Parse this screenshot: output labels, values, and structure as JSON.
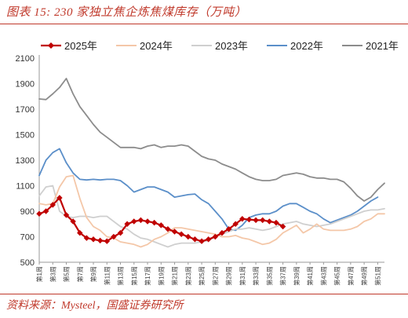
{
  "header": {
    "title": "图表 15: 230 家独立焦企炼焦煤库存（万吨）"
  },
  "footer": {
    "source": "资料来源：Mysteel，国盛证券研究所"
  },
  "chart_data": {
    "type": "line",
    "title": "图表 15: 230 家独立焦企炼焦煤库存（万吨）",
    "xlabel": "",
    "ylabel": "",
    "ylim": [
      500,
      2100
    ],
    "yticks": [
      500,
      700,
      900,
      1100,
      1300,
      1500,
      1700,
      1900,
      2100
    ],
    "xlim": [
      1,
      52
    ],
    "xticks": [
      "第1周",
      "第3周",
      "第5周",
      "第7周",
      "第9周",
      "第11周",
      "第13周",
      "第15周",
      "第17周",
      "第19周",
      "第21周",
      "第23周",
      "第25周",
      "第27周",
      "第29周",
      "第31周",
      "第33周",
      "第35周",
      "第37周",
      "第39周",
      "第41周",
      "第43周",
      "第45周",
      "第47周",
      "第49周",
      "第51周"
    ],
    "legend_position": "top",
    "grid": false,
    "series": [
      {
        "name": "2025年",
        "color": "#c00000",
        "marker": "diamond",
        "values": [
          880,
          900,
          950,
          1005,
          870,
          820,
          730,
          690,
          680,
          670,
          665,
          700,
          730,
          800,
          820,
          830,
          820,
          810,
          790,
          760,
          740,
          720,
          700,
          680,
          665,
          680,
          700,
          730,
          760,
          800,
          840,
          835,
          830,
          830,
          820,
          810,
          780
        ]
      },
      {
        "name": "2024年",
        "color": "#f4c7a8",
        "values": [
          960,
          950,
          960,
          1090,
          1170,
          1180,
          1000,
          850,
          780,
          750,
          700,
          690,
          660,
          650,
          640,
          620,
          640,
          680,
          700,
          730,
          770,
          770,
          760,
          750,
          740,
          730,
          720,
          700,
          700,
          710,
          690,
          680,
          660,
          640,
          650,
          680,
          730,
          760,
          790,
          730,
          760,
          800,
          760,
          750,
          750,
          750,
          760,
          780,
          820,
          840,
          880,
          880
        ]
      },
      {
        "name": "2023年",
        "color": "#cfcfcf",
        "values": [
          1020,
          1090,
          1100,
          900,
          860,
          850,
          860,
          860,
          850,
          860,
          860,
          820,
          780,
          760,
          720,
          690,
          680,
          660,
          640,
          620,
          640,
          650,
          650,
          650,
          660,
          670,
          700,
          720,
          740,
          760,
          760,
          770,
          760,
          750,
          760,
          780,
          800,
          810,
          820,
          800,
          790,
          780,
          790,
          800,
          820,
          840,
          860,
          880,
          900,
          910,
          910,
          920
        ]
      },
      {
        "name": "2022年",
        "color": "#5b8fc9",
        "values": [
          1180,
          1300,
          1360,
          1390,
          1280,
          1200,
          1150,
          1145,
          1150,
          1145,
          1150,
          1150,
          1140,
          1100,
          1050,
          1070,
          1090,
          1090,
          1070,
          1050,
          1010,
          1020,
          1030,
          1035,
          990,
          960,
          900,
          840,
          760,
          750,
          790,
          850,
          870,
          880,
          880,
          900,
          940,
          960,
          960,
          930,
          900,
          880,
          840,
          810,
          830,
          850,
          870,
          900,
          940,
          980,
          1010
        ]
      },
      {
        "name": "2021年",
        "color": "#8c8c8c",
        "values": [
          1780,
          1775,
          1820,
          1870,
          1940,
          1820,
          1720,
          1650,
          1580,
          1520,
          1480,
          1440,
          1400,
          1400,
          1400,
          1390,
          1410,
          1420,
          1400,
          1410,
          1410,
          1420,
          1410,
          1370,
          1330,
          1310,
          1300,
          1270,
          1250,
          1230,
          1200,
          1170,
          1150,
          1140,
          1140,
          1150,
          1180,
          1190,
          1200,
          1190,
          1170,
          1160,
          1160,
          1150,
          1150,
          1130,
          1080,
          1020,
          980,
          1010,
          1070,
          1120
        ]
      }
    ]
  }
}
